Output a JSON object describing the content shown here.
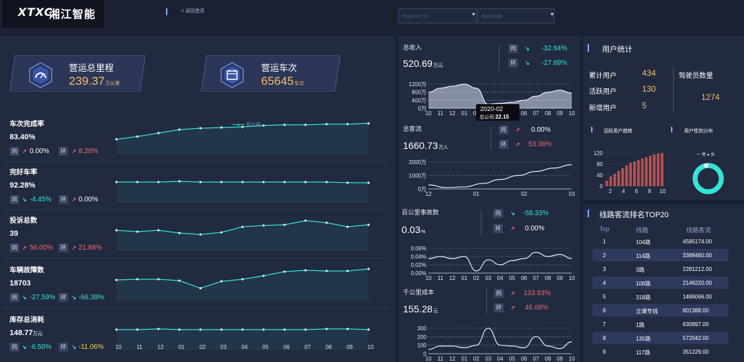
{
  "header": {
    "logo_mark": "XTXC",
    "logo_text": "湘江智能",
    "back_link": "< 返回首页",
    "company_select": "请选择分公司",
    "line_select": "请选择线路"
  },
  "cards": [
    {
      "title": "营运总里程",
      "value": "239.37",
      "unit": "万公里",
      "icon": "speedometer-icon"
    },
    {
      "title": "营运车次",
      "value": "65645",
      "unit": "车次",
      "icon": "bus-schedule-icon"
    }
  ],
  "kpi": {
    "legend": "总公司",
    "x_ticks": [
      "10",
      "11",
      "12",
      "01",
      "02",
      "03",
      "04",
      "05",
      "06",
      "07",
      "08",
      "09",
      "10"
    ],
    "same_label": "同",
    "ring_label": "环",
    "rows": [
      {
        "name": "车次完成率",
        "value": "83.40%",
        "unit": "",
        "same": "0.00%",
        "same_dir": "up",
        "ring": "8.28%",
        "ring_dir": "up",
        "series": [
          22,
          26,
          31,
          36,
          38,
          39,
          40,
          42,
          43,
          43,
          44,
          44,
          45
        ]
      },
      {
        "name": "完好车率",
        "value": "92.28%",
        "unit": "",
        "same": "-4.45%",
        "same_dir": "down",
        "ring": "0.00%",
        "ring_dir": "up",
        "series": [
          30,
          30,
          30,
          31,
          30,
          30,
          30,
          30,
          30,
          30,
          30,
          29,
          29
        ]
      },
      {
        "name": "投诉总数",
        "value": "39",
        "unit": "",
        "same": "56.00%",
        "same_dir": "up",
        "ring": "21.88%",
        "ring_dir": "up",
        "series": [
          30,
          28,
          30,
          26,
          24,
          27,
          35,
          37,
          38,
          44,
          41,
          35,
          38
        ]
      },
      {
        "name": "车辆故障数",
        "value": "18703",
        "unit": "",
        "same": "-27.59%",
        "same_dir": "down",
        "ring": "-66.39%",
        "ring_dir": "down",
        "series": [
          30,
          31,
          31,
          29,
          18,
          28,
          31,
          36,
          42,
          44,
          43,
          43,
          46
        ]
      },
      {
        "name": "库存总消耗",
        "value": "148.77",
        "unit": "万元",
        "same": "-6.50%",
        "same_dir": "down",
        "ring": "-11.06%",
        "ring_dir": "down",
        "series": [
          30,
          30,
          31,
          30,
          30,
          30,
          30,
          30,
          30,
          30,
          31,
          31,
          30
        ]
      }
    ]
  },
  "revenue": {
    "label": "总收入",
    "value": "520.69",
    "unit": "万元",
    "same": "-32.94%",
    "ring": "-27.69%",
    "y_ticks": [
      "1200万",
      "800万",
      "400万",
      "0万"
    ],
    "x_ticks": [
      "10",
      "11",
      "12",
      "01",
      "02",
      "03",
      "04",
      "05",
      "06",
      "07",
      "08",
      "09",
      "10"
    ],
    "series": [
      800,
      1000,
      1100,
      1300,
      1000,
      200,
      250,
      300,
      400,
      600,
      800,
      900,
      750
    ]
  },
  "tooltip": {
    "title": "2020-02",
    "series_name": "总公司:",
    "value": "22.15"
  },
  "passenger": {
    "label": "总客流",
    "value": "1660.73",
    "unit": "万人",
    "same": "0.00%",
    "ring": "53.36%",
    "y_ticks": [
      "2000万",
      "1000万",
      "0万"
    ],
    "x_ticks": [
      "12",
      "01",
      "02",
      "03"
    ],
    "series": [
      300,
      100,
      150,
      400,
      700,
      1000,
      1300,
      1550,
      1800
    ]
  },
  "accident": {
    "label": "百公里事故数",
    "value": "0.03",
    "unit": "%",
    "same": "-58.33%",
    "ring": "0.00%",
    "y_ticks": [
      "0.06%",
      "0.04%",
      "0.02%",
      "0.00%"
    ],
    "x_ticks": [
      "10",
      "11",
      "12",
      "01",
      "02",
      "03",
      "04",
      "05",
      "06",
      "07",
      "08",
      "09",
      "10"
    ],
    "series": [
      0.035,
      0.04,
      0.035,
      0.04,
      0.005,
      0.032,
      0.02,
      0.03,
      0.035,
      0.05,
      0.04,
      0.045,
      0.035
    ]
  },
  "cost": {
    "label": "千公里成本",
    "value": "155.28",
    "unit": "元",
    "same": "133.93%",
    "ring": "46.68%",
    "y_ticks": [
      "300",
      "200",
      "100",
      "0"
    ],
    "x_ticks": [
      "10",
      "11",
      "12",
      "01",
      "02",
      "03",
      "04",
      "05",
      "06",
      "07",
      "08",
      "09",
      "10"
    ],
    "series": [
      50,
      90,
      90,
      70,
      100,
      300,
      100,
      90,
      70,
      200,
      90,
      60,
      140
    ]
  },
  "users": {
    "title": "用户统计",
    "total_label": "累计用户",
    "total": "434",
    "active_label": "活跃用户",
    "active": "130",
    "new_label": "新增用户",
    "new": "5",
    "driver_label": "驾驶员数量",
    "driver": "1274",
    "trend_title": "活跃用户趋势",
    "trend_y": [
      "120",
      "80",
      "40",
      "0"
    ],
    "trend_x": [
      "2",
      "4",
      "6",
      "8",
      "10"
    ],
    "trend_values": [
      20,
      35,
      45,
      55,
      65,
      75,
      85,
      90,
      95,
      100,
      105,
      110,
      115,
      118,
      120
    ],
    "gender_title": "用户性别分布",
    "male": "男",
    "female": "女",
    "male_share": 0.95
  },
  "ranking": {
    "title": "线路客流排名TOP20",
    "headers": [
      "Top",
      "线路",
      "线路客流"
    ],
    "rows": [
      [
        "1",
        "104路",
        "4585174.00"
      ],
      [
        "2",
        "114路",
        "3388460.00"
      ],
      [
        "3",
        "3路",
        "2281212.00"
      ],
      [
        "4",
        "108路",
        "2146220.00"
      ],
      [
        "5",
        "318路",
        "1486066.00"
      ],
      [
        "6",
        "立珊专线",
        "801388.00"
      ],
      [
        "7",
        "1路",
        "630897.00"
      ],
      [
        "8",
        "135路",
        "572042.00"
      ],
      [
        "9",
        "117路",
        "351229.00"
      ]
    ]
  }
}
